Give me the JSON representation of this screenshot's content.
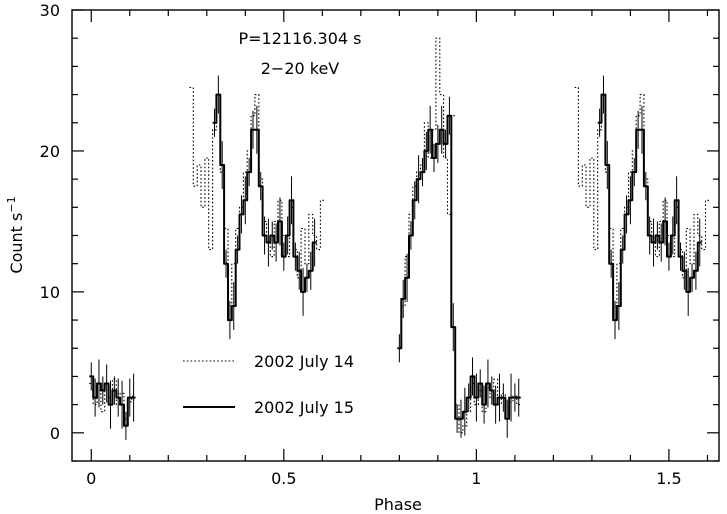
{
  "chart_data": {
    "type": "line",
    "xlabel": "Phase",
    "ylabel_main": "Count s",
    "ylabel_sup": "−1",
    "annotations": [
      "P=12116.304 s",
      "2−20 keV"
    ],
    "xlim": [
      -0.05,
      1.63
    ],
    "ylim": [
      -2,
      30
    ],
    "x_ticks": [
      0,
      0.5,
      1,
      1.5
    ],
    "x_tick_labels": [
      "0",
      "0.5",
      "1",
      "1.5"
    ],
    "y_ticks": [
      0,
      10,
      20,
      30
    ],
    "y_tick_labels": [
      "0",
      "10",
      "20",
      "30"
    ],
    "grid": false,
    "legend_position": "lower-middle",
    "series": [
      {
        "name": "2002 July 14",
        "style": "dotted",
        "segments": [
          {
            "x": [
              0.0,
              0.01,
              0.02,
              0.03,
              0.04,
              0.05,
              0.06,
              0.07,
              0.08,
              0.09,
              0.1,
              0.11
            ],
            "y": [
              3.5,
              2.0,
              3.0,
              1.5,
              3.2,
              2.5,
              3.8,
              2.0,
              2.8,
              1.0,
              2.2,
              2.6
            ]
          },
          {
            "x": [
              0.26,
              0.27,
              0.28,
              0.29,
              0.3,
              0.31,
              0.32,
              0.33,
              0.34,
              0.35,
              0.36,
              0.37,
              0.38,
              0.39,
              0.4,
              0.41,
              0.42,
              0.43,
              0.44,
              0.45,
              0.46,
              0.47,
              0.48,
              0.49,
              0.5,
              0.51,
              0.52,
              0.53,
              0.54,
              0.55,
              0.56,
              0.57,
              0.58,
              0.59,
              0.6
            ],
            "y": [
              24.5,
              17.5,
              19.0,
              16.0,
              19.5,
              13.0,
              21.5,
              24.0,
              18.5,
              14.5,
              9.0,
              12.0,
              14.5,
              16.0,
              18.5,
              20.0,
              22.5,
              24.0,
              18.0,
              15.0,
              13.5,
              12.5,
              15.0,
              16.5,
              14.0,
              12.5,
              16.0,
              13.0,
              11.0,
              14.5,
              12.0,
              15.5,
              14.0,
              13.0,
              16.5
            ]
          },
          {
            "x": [
              0.81,
              0.82,
              0.83,
              0.84,
              0.85,
              0.86,
              0.87,
              0.88,
              0.89,
              0.9,
              0.91,
              0.92,
              0.93,
              0.94
            ],
            "y": [
              9.0,
              12.5,
              15.5,
              17.5,
              18.5,
              19.0,
              22.0,
              19.5,
              21.5,
              28.0,
              24.0,
              19.5,
              15.5,
              22.5
            ]
          },
          {
            "x": [
              0.95,
              0.96,
              0.97,
              0.98,
              0.99,
              1.0,
              1.01,
              1.02,
              1.03,
              1.04,
              1.05,
              1.06,
              1.07,
              1.08,
              1.09,
              1.1,
              1.11
            ],
            "y": [
              2.0,
              0.0,
              0.5,
              1.5,
              3.5,
              2.0,
              3.0,
              1.5,
              3.2,
              2.5,
              3.8,
              2.0,
              2.8,
              1.0,
              2.2,
              2.6,
              2.0
            ]
          },
          {
            "x": [
              1.26,
              1.27,
              1.28,
              1.29,
              1.3,
              1.31,
              1.32,
              1.33,
              1.34,
              1.35,
              1.36,
              1.37,
              1.38,
              1.39,
              1.4,
              1.41,
              1.42,
              1.43,
              1.44,
              1.45,
              1.46,
              1.47,
              1.48,
              1.49,
              1.5,
              1.51,
              1.52,
              1.53,
              1.54,
              1.55,
              1.56,
              1.57,
              1.58,
              1.59,
              1.6
            ],
            "y": [
              24.5,
              17.5,
              19.0,
              16.0,
              19.5,
              13.0,
              21.5,
              24.0,
              18.5,
              14.5,
              9.0,
              12.0,
              14.5,
              16.0,
              18.5,
              20.0,
              22.5,
              24.0,
              18.0,
              15.0,
              13.5,
              12.5,
              15.0,
              16.5,
              14.0,
              12.5,
              16.0,
              13.0,
              11.0,
              14.5,
              12.0,
              15.5,
              14.0,
              13.0,
              16.5
            ]
          }
        ]
      },
      {
        "name": "2002 July 15",
        "style": "solid",
        "segments": [
          {
            "x": [
              0.0,
              0.01,
              0.02,
              0.03,
              0.04,
              0.05,
              0.06,
              0.07,
              0.08,
              0.09,
              0.1,
              0.11
            ],
            "y": [
              4.0,
              2.5,
              3.5,
              3.0,
              3.5,
              2.0,
              3.0,
              2.5,
              2.0,
              0.5,
              2.5,
              2.5
            ]
          },
          {
            "x": [
              0.32,
              0.33,
              0.34,
              0.35,
              0.36,
              0.37,
              0.38,
              0.39,
              0.4,
              0.41,
              0.42,
              0.43,
              0.44,
              0.45,
              0.46,
              0.47,
              0.48,
              0.49,
              0.5,
              0.51,
              0.52,
              0.53,
              0.54,
              0.55,
              0.56,
              0.57,
              0.58
            ],
            "y": [
              22.0,
              24.0,
              19.0,
              12.0,
              8.0,
              9.0,
              13.0,
              15.5,
              16.5,
              18.5,
              21.5,
              21.5,
              17.5,
              14.0,
              13.5,
              14.0,
              13.5,
              15.0,
              12.5,
              14.0,
              16.5,
              12.5,
              11.5,
              10.0,
              11.0,
              11.5,
              13.5
            ]
          },
          {
            "x": [
              0.8,
              0.81,
              0.82,
              0.83,
              0.84,
              0.85,
              0.86,
              0.87,
              0.88,
              0.89,
              0.9,
              0.91,
              0.92,
              0.93,
              0.94,
              0.95,
              0.96,
              0.97,
              0.98,
              0.99,
              1.0,
              1.01,
              1.02,
              1.03,
              1.04,
              1.05,
              1.06,
              1.07,
              1.08,
              1.09,
              1.1,
              1.11
            ],
            "y": [
              6.0,
              9.5,
              11.0,
              14.0,
              16.5,
              18.0,
              18.5,
              20.0,
              21.5,
              19.5,
              20.5,
              21.5,
              20.5,
              22.5,
              7.5,
              1.0,
              1.0,
              1.5,
              2.5,
              4.0,
              2.5,
              3.5,
              2.0,
              3.5,
              3.0,
              2.0,
              2.5,
              2.5,
              1.0,
              2.5,
              2.5,
              2.5
            ]
          },
          {
            "x": [
              1.32,
              1.33,
              1.34,
              1.35,
              1.36,
              1.37,
              1.38,
              1.39,
              1.4,
              1.41,
              1.42,
              1.43,
              1.44,
              1.45,
              1.46,
              1.47,
              1.48,
              1.49,
              1.5,
              1.51,
              1.52,
              1.53,
              1.54,
              1.55,
              1.56,
              1.57,
              1.58
            ],
            "y": [
              22.0,
              24.0,
              19.0,
              12.0,
              8.0,
              9.0,
              13.0,
              15.5,
              16.5,
              18.5,
              21.5,
              21.5,
              17.5,
              14.0,
              13.5,
              14.0,
              13.5,
              15.0,
              12.5,
              14.0,
              16.5,
              12.5,
              11.5,
              10.0,
              11.0,
              11.5,
              13.5
            ]
          }
        ]
      }
    ]
  }
}
